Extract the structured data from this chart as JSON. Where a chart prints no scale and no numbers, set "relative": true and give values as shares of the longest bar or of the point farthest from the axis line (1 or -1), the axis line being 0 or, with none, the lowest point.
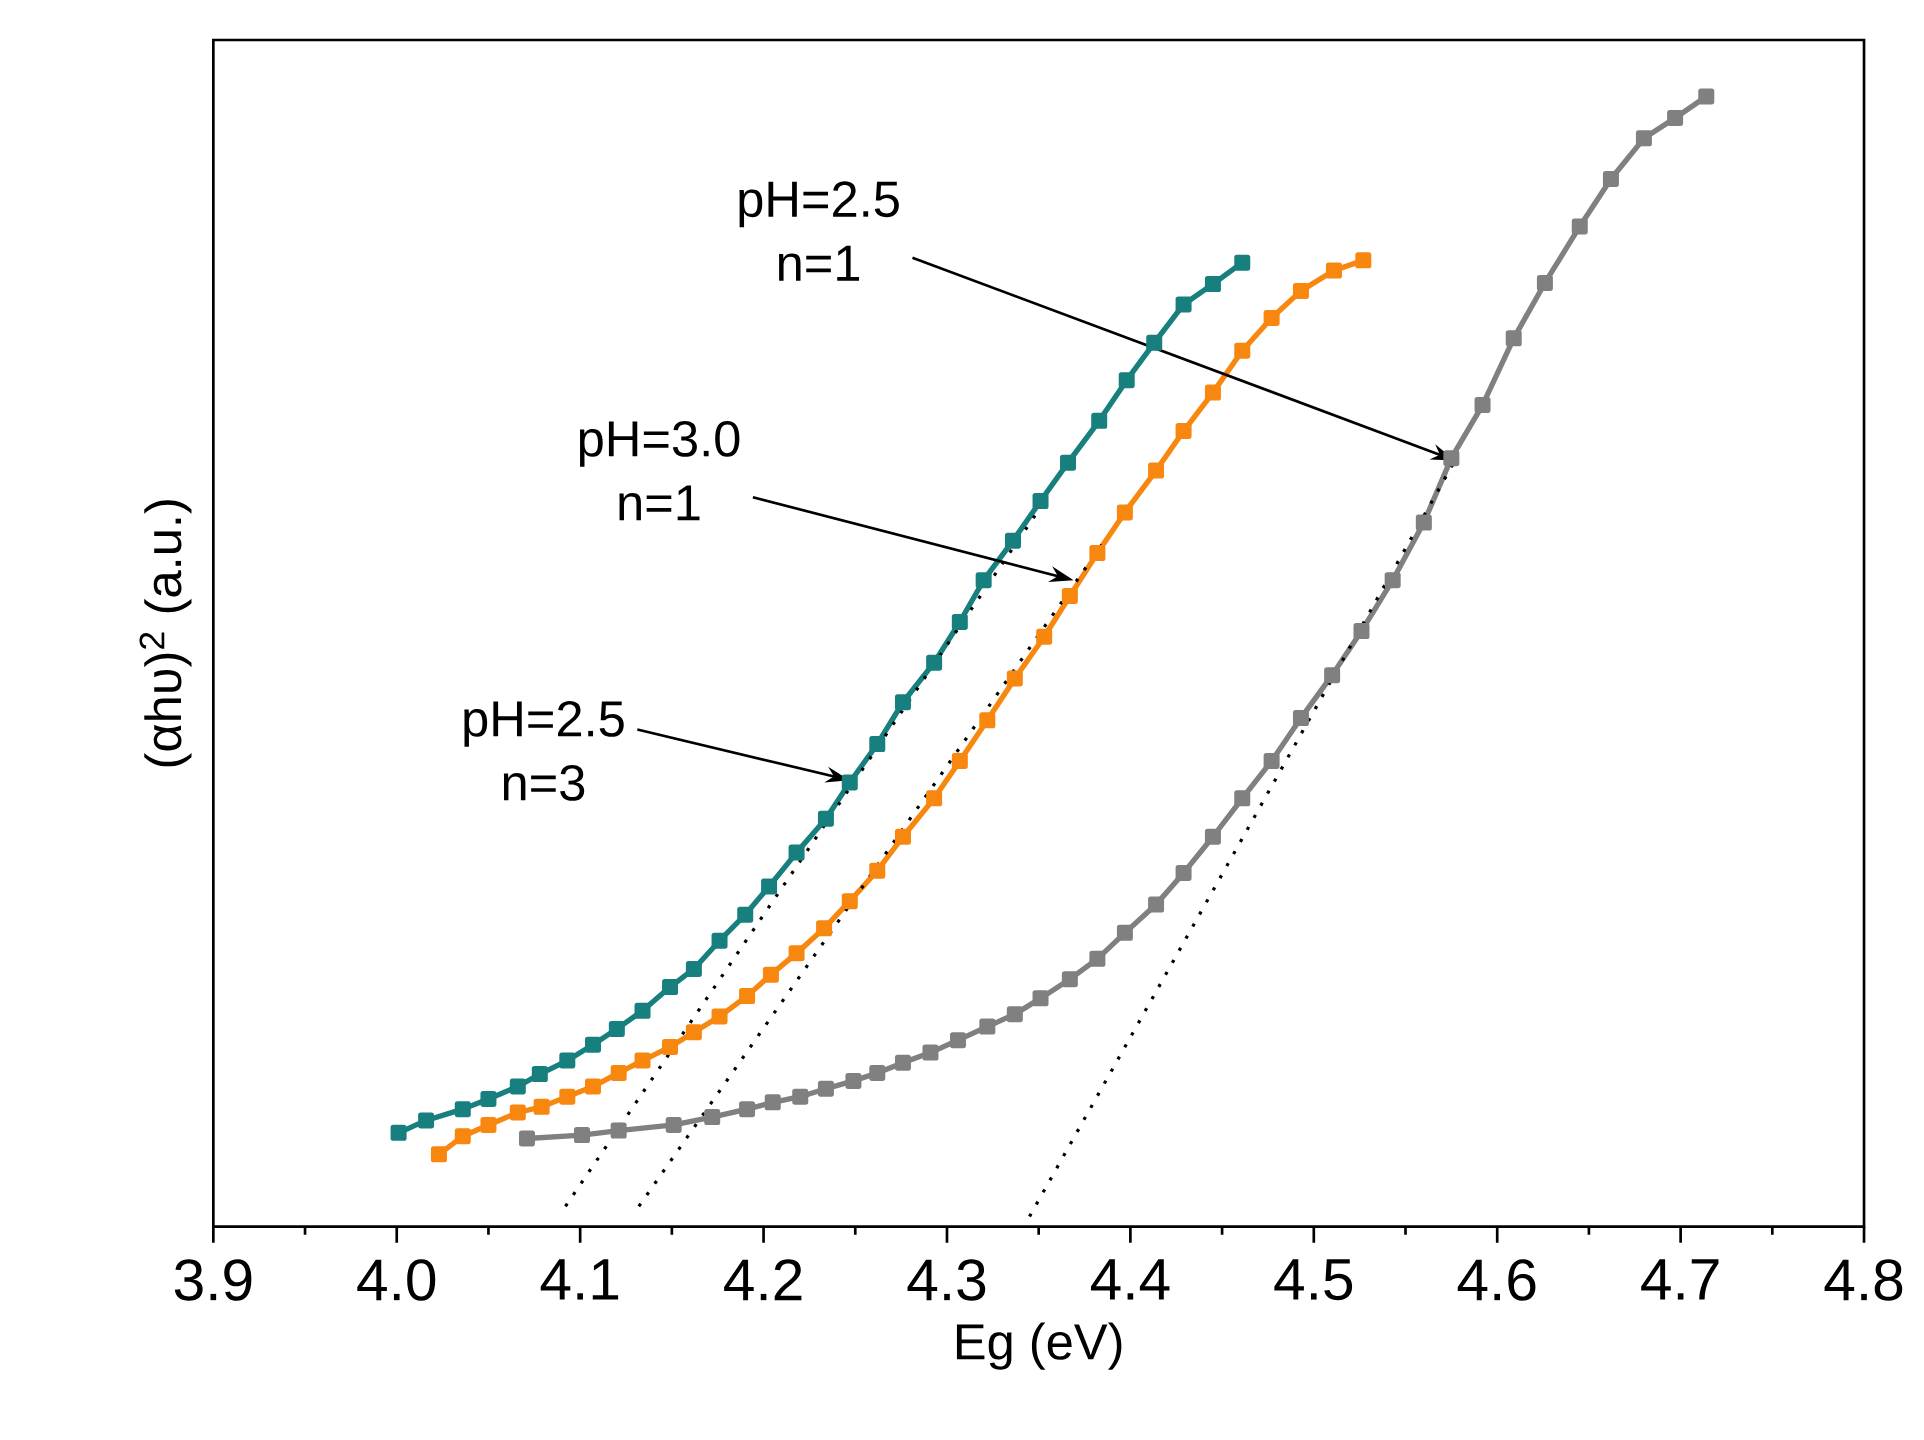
{
  "chart_data": {
    "type": "line",
    "xlabel": "Eg (eV)",
    "ylabel": "(αhυ)$^{2}$ (a.u.)",
    "relative": true,
    "marker": "square",
    "xlim": [
      3.9,
      4.8
    ],
    "xticks": [
      3.9,
      {
        "value": 4.0,
        "label": "4.0"
      },
      4.1,
      4.2,
      4.3,
      4.4,
      4.5,
      4.6,
      4.7,
      4.8
    ],
    "series": [
      {
        "color": "#17807f",
        "x": [
          4.001,
          4.016,
          4.036,
          4.05,
          4.066,
          4.078,
          4.093,
          4.107,
          4.12,
          4.134,
          4.149,
          4.162,
          4.176,
          4.19,
          4.203,
          4.218,
          4.234,
          4.247,
          4.262,
          4.276,
          4.293,
          4.307,
          4.32,
          4.336,
          4.351,
          4.366,
          4.383,
          4.398,
          4.413,
          4.429,
          4.445,
          4.461
        ],
        "values": [
          0.083,
          0.094,
          0.104,
          0.113,
          0.124,
          0.135,
          0.147,
          0.161,
          0.175,
          0.191,
          0.212,
          0.228,
          0.253,
          0.276,
          0.301,
          0.331,
          0.361,
          0.393,
          0.427,
          0.464,
          0.499,
          0.535,
          0.572,
          0.607,
          0.642,
          0.676,
          0.713,
          0.749,
          0.782,
          0.816,
          0.834,
          0.853
        ]
      },
      {
        "color": "#f7870f",
        "x": [
          4.023,
          4.036,
          4.05,
          4.066,
          4.079,
          4.093,
          4.107,
          4.121,
          4.134,
          4.149,
          4.162,
          4.176,
          4.191,
          4.204,
          4.218,
          4.233,
          4.247,
          4.262,
          4.276,
          4.293,
          4.307,
          4.322,
          4.337,
          4.353,
          4.367,
          4.382,
          4.397,
          4.414,
          4.429,
          4.445,
          4.461,
          4.477,
          4.493,
          4.511,
          4.527
        ],
        "values": [
          0.064,
          0.08,
          0.09,
          0.101,
          0.106,
          0.115,
          0.124,
          0.136,
          0.147,
          0.159,
          0.172,
          0.186,
          0.204,
          0.223,
          0.242,
          0.264,
          0.288,
          0.315,
          0.345,
          0.379,
          0.412,
          0.448,
          0.485,
          0.522,
          0.558,
          0.596,
          0.632,
          0.669,
          0.704,
          0.738,
          0.775,
          0.804,
          0.828,
          0.846,
          0.855
        ]
      },
      {
        "color": "#808080",
        "x": [
          4.071,
          4.101,
          4.121,
          4.151,
          4.172,
          4.191,
          4.205,
          4.22,
          4.234,
          4.249,
          4.262,
          4.276,
          4.291,
          4.306,
          4.322,
          4.337,
          4.351,
          4.367,
          4.382,
          4.397,
          4.414,
          4.429,
          4.445,
          4.461,
          4.477,
          4.493,
          4.51,
          4.526,
          4.543,
          4.56,
          4.575,
          4.592,
          4.609,
          4.626,
          4.645,
          4.662,
          4.68,
          4.697,
          4.714
        ],
        "values": [
          0.078,
          0.081,
          0.085,
          0.09,
          0.097,
          0.104,
          0.11,
          0.115,
          0.122,
          0.129,
          0.136,
          0.145,
          0.154,
          0.165,
          0.177,
          0.188,
          0.202,
          0.219,
          0.237,
          0.26,
          0.285,
          0.313,
          0.345,
          0.379,
          0.412,
          0.45,
          0.488,
          0.527,
          0.572,
          0.623,
          0.68,
          0.727,
          0.786,
          0.835,
          0.885,
          0.927,
          0.963,
          0.981,
          1.0
        ]
      },
      {
        "type": "line",
        "color": "#000000",
        "marker": "none",
        "line_style": "dotted",
        "x": [
          4.092,
          4.35
        ],
        "values": [
          0.018,
          0.634
        ]
      },
      {
        "type": "line",
        "color": "#000000",
        "marker": "none",
        "line_style": "dotted",
        "x": [
          4.132,
          4.386
        ],
        "values": [
          0.018,
          0.607
        ]
      },
      {
        "type": "line",
        "color": "#000000",
        "marker": "none",
        "line_style": "dotted",
        "x": [
          4.345,
          4.577
        ],
        "values": [
          0.009,
          0.678
        ]
      }
    ],
    "annotations": [
      {
        "text": "pH=2.5 n=1",
        "x": 4.577,
        "y": 0.678
      },
      {
        "text": "pH=3.0 n=1",
        "x": 4.369,
        "y": 0.572
      },
      {
        "text": "pH=2.5 n=3",
        "x": 4.247,
        "y": 0.395
      }
    ]
  }
}
